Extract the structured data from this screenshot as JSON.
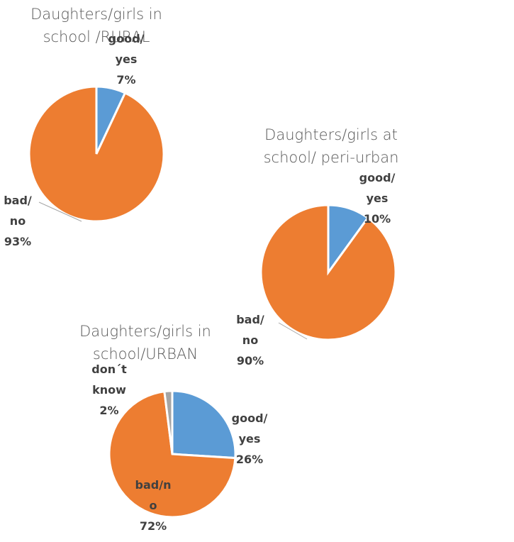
{
  "chart_data": [
    {
      "type": "pie",
      "title": "Daughters/girls in school /RURAL",
      "categories": [
        "good/ yes",
        "bad/ no"
      ],
      "values": [
        7,
        93
      ],
      "value_labels": [
        "7%",
        "93%"
      ],
      "colors": [
        "#5b9bd5",
        "#ed7d31"
      ]
    },
    {
      "type": "pie",
      "title": "Daughters/girls at school/ peri-urban",
      "categories": [
        "good/ yes",
        "bad/ no"
      ],
      "values": [
        10,
        90
      ],
      "value_labels": [
        "10%",
        "90%"
      ],
      "colors": [
        "#5b9bd5",
        "#ed7d31"
      ]
    },
    {
      "type": "pie",
      "title": "Daughters/girls in school/URBAN",
      "categories": [
        "good/ yes",
        "bad/no",
        "don´t know"
      ],
      "values": [
        26,
        72,
        2
      ],
      "value_labels": [
        "26%",
        "72%",
        "2%"
      ],
      "colors": [
        "#5b9bd5",
        "#ed7d31",
        "#a5a5a5"
      ]
    }
  ]
}
